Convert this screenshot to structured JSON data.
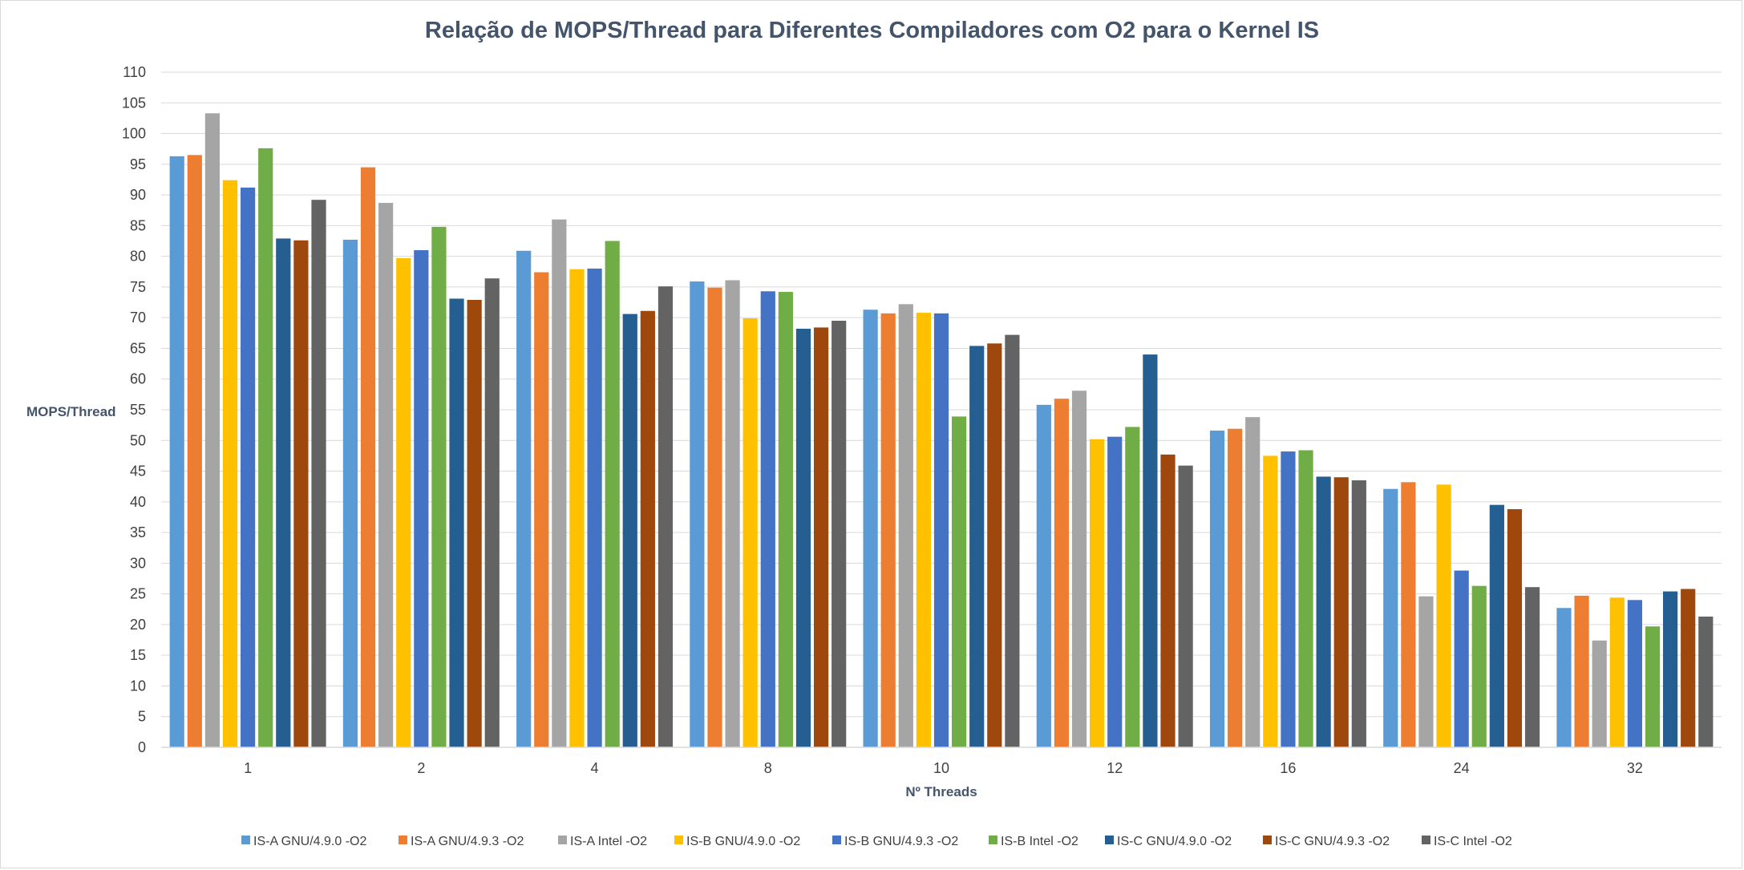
{
  "chart_data": {
    "type": "bar",
    "title": "Relação de MOPS/Thread para Diferentes Compiladores com O2 para o Kernel IS",
    "xlabel": "Nº Threads",
    "ylabel": "MOPS/Thread",
    "ylim": [
      0,
      110
    ],
    "ytick_step": 5,
    "grid": true,
    "legend_position": "bottom",
    "categories": [
      "1",
      "2",
      "4",
      "8",
      "10",
      "12",
      "16",
      "24",
      "32"
    ],
    "series": [
      {
        "name": "IS-A GNU/4.9.0 -O2",
        "color": "#5b9bd5",
        "values": [
          96.3,
          82.7,
          80.9,
          75.9,
          71.3,
          55.8,
          51.6,
          42.1,
          22.7
        ]
      },
      {
        "name": "IS-A GNU/4.9.3 -O2",
        "color": "#ed7d31",
        "values": [
          96.5,
          94.5,
          77.4,
          74.9,
          70.7,
          56.8,
          51.9,
          43.2,
          24.7
        ]
      },
      {
        "name": "IS-A Intel -O2",
        "color": "#a5a5a5",
        "values": [
          103.3,
          88.7,
          86.0,
          76.1,
          72.2,
          58.1,
          53.8,
          24.6,
          17.4
        ]
      },
      {
        "name": "IS-B GNU/4.9.0 -O2",
        "color": "#ffc000",
        "values": [
          92.4,
          79.7,
          77.9,
          69.9,
          70.8,
          50.2,
          47.5,
          42.8,
          24.4
        ]
      },
      {
        "name": "IS-B GNU/4.9.3 -O2",
        "color": "#4472c4",
        "values": [
          91.2,
          81.0,
          78.0,
          74.3,
          70.7,
          50.6,
          48.2,
          28.8,
          24.0
        ]
      },
      {
        "name": "IS-B Intel -O2",
        "color": "#70ad47",
        "values": [
          97.6,
          84.8,
          82.5,
          74.2,
          53.9,
          52.2,
          48.4,
          26.3,
          19.7
        ]
      },
      {
        "name": "IS-C GNU/4.9.0 -O2",
        "color": "#255e91",
        "values": [
          82.9,
          73.1,
          70.6,
          68.2,
          65.4,
          64.0,
          44.1,
          39.5,
          25.4
        ]
      },
      {
        "name": "IS-C GNU/4.9.3 -O2",
        "color": "#9e480e",
        "values": [
          82.6,
          72.9,
          71.1,
          68.4,
          65.8,
          47.7,
          44.0,
          38.8,
          25.8
        ]
      },
      {
        "name": "IS-C Intel -O2",
        "color": "#636363",
        "values": [
          89.2,
          76.4,
          75.1,
          69.5,
          67.2,
          45.9,
          43.5,
          26.1,
          21.3
        ]
      }
    ]
  }
}
